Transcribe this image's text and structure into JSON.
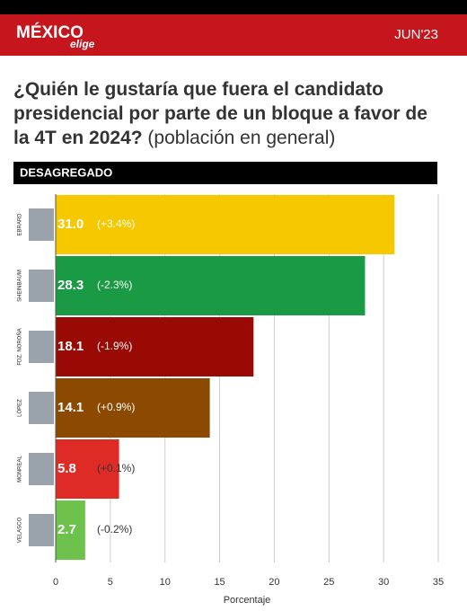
{
  "header": {
    "logo": "MÉXICO",
    "logo_sub": "elige",
    "date": "JUN'23"
  },
  "chart_data": {
    "type": "bar",
    "orientation": "horizontal",
    "title": "¿Quién le gustaría que fuera el candidato presidencial por parte de un bloque a favor de la 4T en 2024?",
    "subtitle": "(población en general)",
    "section": "DESAGREGADO",
    "categories": [
      "EBRARD",
      "SHEINBAUM",
      "FDZ. NOROÑA",
      "LÓPEZ",
      "MONREAL",
      "VELASCO"
    ],
    "values": [
      31.0,
      28.3,
      18.1,
      14.1,
      5.8,
      2.7
    ],
    "value_labels": [
      "31.0",
      "28.3",
      "18.1",
      "14.1",
      "5.8",
      "2.7"
    ],
    "change_labels": [
      "(+3.4%)",
      "(-2.3%)",
      "(-1.9%)",
      "(+0.9%)",
      "(+0.1%)",
      "(-0.2%)"
    ],
    "colors": [
      "#f6c800",
      "#1b9a45",
      "#9a0a05",
      "#8c4a00",
      "#df2b26",
      "#6cc24a"
    ],
    "xlim": [
      0,
      35
    ],
    "xticks": [
      0,
      5,
      10,
      15,
      20,
      25,
      30,
      35
    ],
    "xlabel": "Porcentaje",
    "grid": true
  }
}
